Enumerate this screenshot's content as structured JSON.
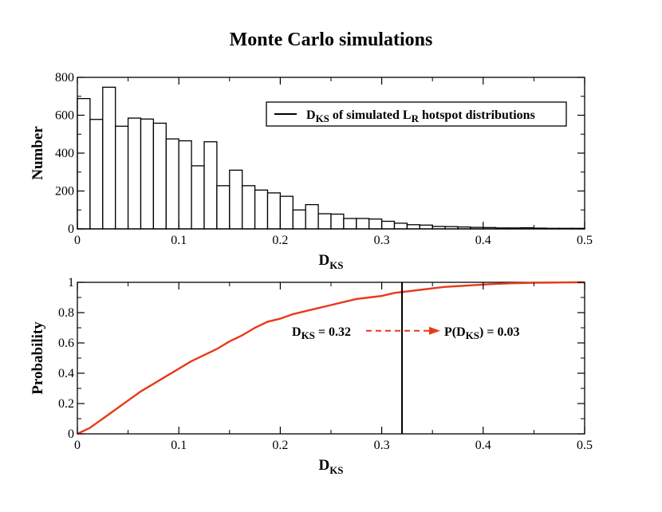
{
  "title": "Monte Carlo simulations",
  "chart_data": [
    {
      "type": "bar",
      "xlabel": {
        "main": "D",
        "sub": "KS"
      },
      "ylabel": "Number",
      "xlim": [
        0,
        0.5
      ],
      "ylim": [
        0,
        800
      ],
      "x_ticks": [
        "0",
        "0.1",
        "0.2",
        "0.3",
        "0.4",
        "0.5"
      ],
      "y_ticks": [
        "0",
        "200",
        "400",
        "600",
        "800"
      ],
      "bin_width": 0.0125,
      "bin_starts": [
        0,
        0.0125,
        0.025,
        0.0375,
        0.05,
        0.0625,
        0.075,
        0.0875,
        0.1,
        0.1125,
        0.125,
        0.1375,
        0.15,
        0.1625,
        0.175,
        0.1875,
        0.2,
        0.2125,
        0.225,
        0.2375,
        0.25,
        0.2625,
        0.275,
        0.2875,
        0.3,
        0.3125,
        0.325,
        0.3375,
        0.35,
        0.3625,
        0.375,
        0.3875,
        0.4,
        0.4125,
        0.425,
        0.4375,
        0.45,
        0.4625,
        0.475,
        0.4875
      ],
      "values": [
        688,
        578,
        748,
        542,
        585,
        580,
        558,
        475,
        465,
        333,
        460,
        228,
        310,
        228,
        205,
        190,
        172,
        100,
        128,
        80,
        78,
        55,
        55,
        52,
        40,
        30,
        22,
        20,
        13,
        12,
        10,
        8,
        7,
        5,
        5,
        6,
        4,
        3,
        3,
        3
      ],
      "legend": {
        "placement": "top-right",
        "parts": [
          {
            "text": "D",
            "sub": "KS"
          },
          {
            "text": " of simulated L",
            "sub": "R"
          },
          {
            "text": " hotspot distributions",
            "sub": ""
          }
        ]
      },
      "colors": {
        "bars": "#000000"
      }
    },
    {
      "type": "line",
      "xlabel": {
        "main": "D",
        "sub": "KS"
      },
      "ylabel": "Probability",
      "xlim": [
        0,
        0.5
      ],
      "ylim": [
        0,
        1
      ],
      "x_ticks": [
        "0",
        "0.1",
        "0.2",
        "0.3",
        "0.4",
        "0.5"
      ],
      "y_ticks": [
        "0",
        "0.2",
        "0.4",
        "0.6",
        "0.8",
        "1"
      ],
      "series": [
        {
          "color": "#e8391a",
          "x": [
            0,
            0.0125,
            0.025,
            0.0375,
            0.05,
            0.0625,
            0.075,
            0.0875,
            0.1,
            0.1125,
            0.125,
            0.1375,
            0.15,
            0.1625,
            0.175,
            0.1875,
            0.2,
            0.2125,
            0.225,
            0.2375,
            0.25,
            0.2625,
            0.275,
            0.2875,
            0.3,
            0.3125,
            0.325,
            0.3375,
            0.35,
            0.3625,
            0.375,
            0.3875,
            0.4,
            0.4125,
            0.425,
            0.4375,
            0.45,
            0.4625,
            0.475,
            0.4875,
            0.5
          ],
          "y": [
            0,
            0.04,
            0.1,
            0.16,
            0.22,
            0.28,
            0.33,
            0.38,
            0.43,
            0.48,
            0.52,
            0.56,
            0.61,
            0.65,
            0.7,
            0.74,
            0.76,
            0.79,
            0.81,
            0.83,
            0.85,
            0.87,
            0.89,
            0.9,
            0.91,
            0.93,
            0.94,
            0.95,
            0.96,
            0.97,
            0.975,
            0.98,
            0.985,
            0.99,
            0.993,
            0.995,
            0.997,
            0.998,
            0.999,
            1.0,
            1.0
          ]
        }
      ],
      "vline": {
        "x": 0.32,
        "color": "#000000"
      },
      "annotation": {
        "left": {
          "text": "D",
          "sub": "KS",
          "rest": " = 0.32"
        },
        "right": {
          "text": "P(D",
          "sub": "KS",
          "rest": ") = 0.03"
        },
        "arrow_color": "#e8391a",
        "y": 0.68
      }
    }
  ]
}
